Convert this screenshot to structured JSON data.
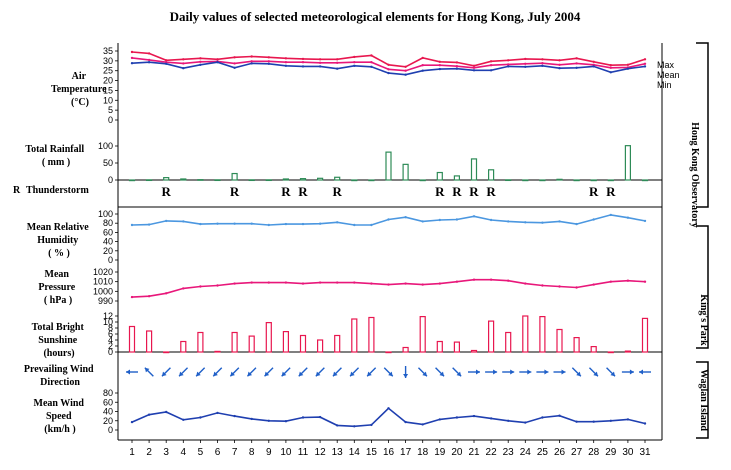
{
  "chart_data": {
    "type": "multi-panel",
    "title": "Daily values of selected meteorological elements for Hong Kong, July 2004",
    "days": [
      1,
      2,
      3,
      4,
      5,
      6,
      7,
      8,
      9,
      10,
      11,
      12,
      13,
      14,
      15,
      16,
      17,
      18,
      19,
      20,
      21,
      22,
      23,
      24,
      25,
      26,
      27,
      28,
      29,
      30,
      31
    ],
    "station_labels": [
      "Hong Kong Observatory",
      "King's Park",
      "Waglan Island"
    ],
    "panels": {
      "temperature": {
        "label": [
          "Air",
          "Temperature",
          "(°C)"
        ],
        "type": "line",
        "ylim": [
          0,
          35
        ],
        "ticks": [
          "0",
          "5",
          "10",
          "15",
          "20",
          "25",
          "30",
          "35"
        ],
        "series": [
          {
            "name": "Max",
            "color": "#e8174f",
            "values": [
              34.5,
              33.8,
              30.3,
              30.8,
              31.3,
              30.8,
              31.8,
              32.2,
              31.8,
              31.3,
              31.0,
              30.8,
              30.8,
              32.0,
              32.7,
              28.0,
              27.0,
              31.5,
              29.5,
              29.2,
              27.5,
              29.8,
              30.3,
              31.0,
              30.8,
              30.3,
              31.3,
              29.5,
              27.8,
              28.0,
              30.8
            ]
          },
          {
            "name": "Mean",
            "color": "#e8177a",
            "values": [
              31.5,
              30.5,
              29.3,
              28.7,
              29.5,
              29.7,
              28.7,
              29.8,
              29.8,
              29.3,
              29.3,
              29.0,
              29.0,
              29.3,
              29.3,
              25.7,
              25.0,
              27.8,
              27.8,
              27.3,
              26.5,
              27.8,
              28.2,
              28.5,
              28.8,
              28.0,
              28.7,
              28.0,
              26.5,
              26.7,
              28.5
            ]
          },
          {
            "name": "Min",
            "color": "#1f3fb0",
            "values": [
              28.8,
              29.3,
              28.5,
              26.3,
              28.0,
              29.3,
              26.5,
              28.7,
              28.5,
              27.5,
              27.2,
              27.2,
              26.0,
              27.5,
              27.0,
              23.8,
              23.0,
              25.0,
              25.8,
              26.0,
              25.2,
              25.2,
              27.2,
              27.0,
              27.5,
              26.3,
              26.5,
              27.2,
              24.2,
              26.0,
              27.2
            ]
          }
        ]
      },
      "rainfall": {
        "label": [
          "Total Rainfall",
          "( mm )"
        ],
        "type": "bar",
        "color": "#2e8b57",
        "ylim": [
          0,
          100
        ],
        "ticks": [
          "0",
          "50",
          "100"
        ],
        "values": [
          0,
          0.5,
          7,
          3,
          1,
          0.5,
          19,
          0.5,
          0.5,
          3,
          4,
          5,
          8,
          0,
          0,
          82,
          46,
          0,
          22,
          12,
          62,
          30,
          0.5,
          0,
          0,
          2,
          0,
          0,
          0,
          101,
          0
        ]
      },
      "thunderstorm": {
        "label": "Thunderstorm",
        "symbol": "R",
        "days": [
          3,
          7,
          10,
          11,
          13,
          19,
          20,
          21,
          22,
          28,
          29
        ]
      },
      "humidity": {
        "label": [
          "Mean Relative",
          "Humidity",
          "( % )"
        ],
        "type": "line",
        "color": "#4b97e0",
        "ylim": [
          0,
          100
        ],
        "ticks": [
          "0",
          "20",
          "40",
          "60",
          "80",
          "100"
        ],
        "values": [
          76,
          77,
          85,
          84,
          78,
          79,
          79,
          79,
          76,
          78,
          78,
          79,
          82,
          76,
          76,
          88,
          93,
          84,
          87,
          88,
          95,
          87,
          84,
          82,
          81,
          84,
          78,
          88,
          98,
          92,
          85
        ]
      },
      "pressure": {
        "label": [
          "Mean",
          "Pressure",
          "( hPa )"
        ],
        "type": "line",
        "color": "#e8177a",
        "ylim": [
          990,
          1020
        ],
        "ticks": [
          "990",
          "1000",
          "1010",
          "1020"
        ],
        "values": [
          994,
          995,
          998,
          1003,
          1005,
          1006,
          1008,
          1009,
          1009,
          1009,
          1008,
          1009,
          1009,
          1009,
          1008,
          1007,
          1008,
          1007,
          1008,
          1010,
          1012,
          1012,
          1011,
          1008,
          1006,
          1005,
          1004,
          1007,
          1010,
          1011,
          1010
        ]
      },
      "sunshine": {
        "label": [
          "Total Bright",
          "Sunshine",
          "(hours)"
        ],
        "type": "bar",
        "color": "#e8174f",
        "ylim": [
          0,
          12
        ],
        "ticks": [
          "0",
          "2",
          "4",
          "6",
          "8",
          "10",
          "12"
        ],
        "values": [
          8.5,
          7,
          0,
          3.5,
          6.5,
          0.2,
          6.5,
          5.3,
          9.8,
          6.8,
          5.5,
          4,
          5.5,
          11,
          11.5,
          0,
          1.5,
          11.8,
          3.5,
          3.3,
          0.5,
          10.3,
          6.5,
          12,
          11.8,
          7.5,
          4.8,
          1.8,
          0,
          0.3,
          11.2
        ]
      },
      "wind_direction": {
        "label": [
          "Prevailing Wind",
          "Direction"
        ],
        "type": "arrows",
        "color": "#1f5fc8",
        "bearings_from_deg": [
          90,
          135,
          45,
          45,
          45,
          45,
          45,
          45,
          45,
          45,
          45,
          45,
          45,
          45,
          45,
          315,
          360,
          315,
          315,
          315,
          270,
          270,
          270,
          270,
          270,
          270,
          315,
          315,
          315,
          270,
          90
        ]
      },
      "wind_speed": {
        "label": [
          "Mean Wind",
          "Speed",
          "(km/h )"
        ],
        "type": "line",
        "color": "#1f3fb0",
        "ylim": [
          0,
          80
        ],
        "ticks": [
          "0",
          "20",
          "40",
          "60",
          "80"
        ],
        "values": [
          17,
          33,
          39,
          22,
          27,
          37,
          30,
          24,
          20,
          19,
          27,
          28,
          10,
          8,
          11,
          47,
          17,
          12,
          23,
          27,
          30,
          25,
          20,
          16,
          27,
          31,
          18,
          18,
          20,
          23,
          14
        ]
      }
    }
  }
}
